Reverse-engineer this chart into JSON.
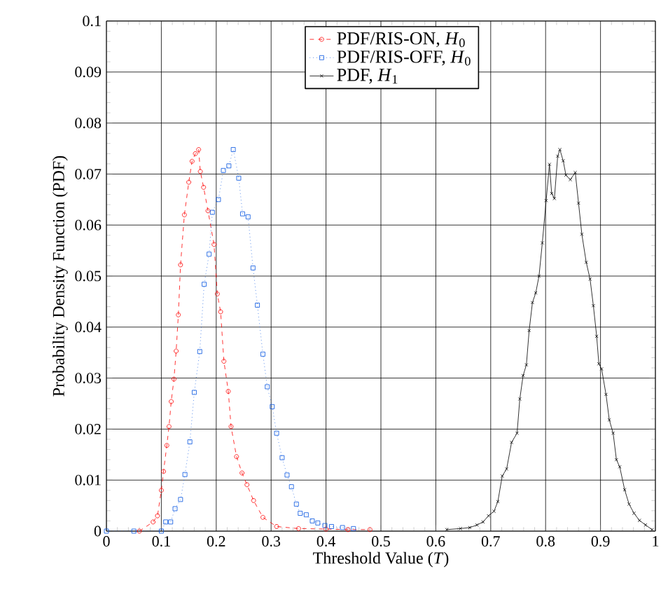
{
  "chart_data": {
    "type": "line",
    "xlabel": "Threshold Value (*T*)",
    "ylabel": "Probability Density Function (PDF)",
    "xlim": [
      0,
      1
    ],
    "ylim": [
      0,
      0.1
    ],
    "xticks": [
      0,
      0.1,
      0.2,
      0.3,
      0.4,
      0.5,
      0.6,
      0.7,
      0.8,
      0.9,
      1
    ],
    "yticks": [
      0,
      0.01,
      0.02,
      0.03,
      0.04,
      0.05,
      0.06,
      0.07,
      0.08,
      0.09,
      0.1
    ],
    "grid": true,
    "legend": "top",
    "series": [
      {
        "name": "PDF/RIS-ON, *H*$_{0}$",
        "color": "#ff0000",
        "marker": "circle",
        "line_style": "dashed",
        "x": [
          0.06,
          0.085,
          0.093,
          0.1,
          0.104,
          0.11,
          0.114,
          0.118,
          0.123,
          0.127,
          0.131,
          0.135,
          0.142,
          0.15,
          0.156,
          0.162,
          0.168,
          0.171,
          0.177,
          0.185,
          0.196,
          0.202,
          0.208,
          0.214,
          0.222,
          0.227,
          0.237,
          0.247,
          0.256,
          0.268,
          0.285,
          0.31,
          0.35,
          0.4,
          0.44,
          0.48
        ],
        "values": [
          0,
          0.0018,
          0.003,
          0.008,
          0.0117,
          0.0168,
          0.0205,
          0.0254,
          0.0298,
          0.0353,
          0.0424,
          0.0522,
          0.062,
          0.0684,
          0.0725,
          0.074,
          0.0748,
          0.0705,
          0.0674,
          0.0628,
          0.0562,
          0.0465,
          0.043,
          0.0333,
          0.0274,
          0.0205,
          0.0146,
          0.0114,
          0.0091,
          0.006,
          0.0027,
          0.0009,
          0.0005,
          0.0004,
          0.0003,
          0.0003
        ]
      },
      {
        "name": "PDF/RIS-OFF, *H*$_{0}$",
        "color": "#0050e0",
        "marker": "square",
        "line_style": "dotted",
        "x": [
          0,
          0.05,
          0.1,
          0.108,
          0.117,
          0.125,
          0.135,
          0.143,
          0.152,
          0.16,
          0.17,
          0.178,
          0.187,
          0.193,
          0.204,
          0.213,
          0.223,
          0.231,
          0.241,
          0.248,
          0.258,
          0.267,
          0.275,
          0.285,
          0.293,
          0.302,
          0.31,
          0.32,
          0.329,
          0.337,
          0.346,
          0.353,
          0.364,
          0.375,
          0.385,
          0.398,
          0.41,
          0.43,
          0.45
        ],
        "values": [
          0,
          0,
          0,
          0.0018,
          0.0018,
          0.0044,
          0.0062,
          0.0111,
          0.0175,
          0.0272,
          0.0352,
          0.0484,
          0.0543,
          0.0625,
          0.065,
          0.0707,
          0.0716,
          0.0748,
          0.0692,
          0.0622,
          0.0616,
          0.0516,
          0.0443,
          0.0347,
          0.0283,
          0.0244,
          0.0192,
          0.0144,
          0.011,
          0.0087,
          0.0053,
          0.0035,
          0.0032,
          0.002,
          0.0016,
          0.0011,
          0.0009,
          0.0007,
          0.0005
        ]
      },
      {
        "name": "PDF, *H*$_{1}$",
        "color": "#000000",
        "marker": "cross",
        "line_style": "solid",
        "x": [
          0.62,
          0.645,
          0.662,
          0.675,
          0.686,
          0.696,
          0.706,
          0.713,
          0.721,
          0.729,
          0.738,
          0.748,
          0.753,
          0.759,
          0.765,
          0.77,
          0.776,
          0.782,
          0.788,
          0.794,
          0.801,
          0.807,
          0.811,
          0.816,
          0.822,
          0.826,
          0.832,
          0.837,
          0.845,
          0.854,
          0.86,
          0.866,
          0.874,
          0.881,
          0.887,
          0.893,
          0.897,
          0.902,
          0.91,
          0.916,
          0.923,
          0.929,
          0.935,
          0.944,
          0.952,
          0.961,
          0.971,
          0.982,
          0.994
        ],
        "values": [
          0.0003,
          0.0005,
          0.0007,
          0.0012,
          0.0018,
          0.003,
          0.0039,
          0.0058,
          0.0108,
          0.0122,
          0.0174,
          0.0192,
          0.0259,
          0.0305,
          0.0326,
          0.0393,
          0.0448,
          0.0467,
          0.05,
          0.0565,
          0.0648,
          0.0719,
          0.0662,
          0.0652,
          0.0735,
          0.0748,
          0.0726,
          0.0698,
          0.0689,
          0.0703,
          0.0643,
          0.0582,
          0.0527,
          0.0494,
          0.0442,
          0.0382,
          0.0328,
          0.0318,
          0.0268,
          0.0218,
          0.0192,
          0.014,
          0.0126,
          0.0081,
          0.0053,
          0.0035,
          0.0021,
          0.0012,
          0.0003
        ]
      }
    ]
  }
}
